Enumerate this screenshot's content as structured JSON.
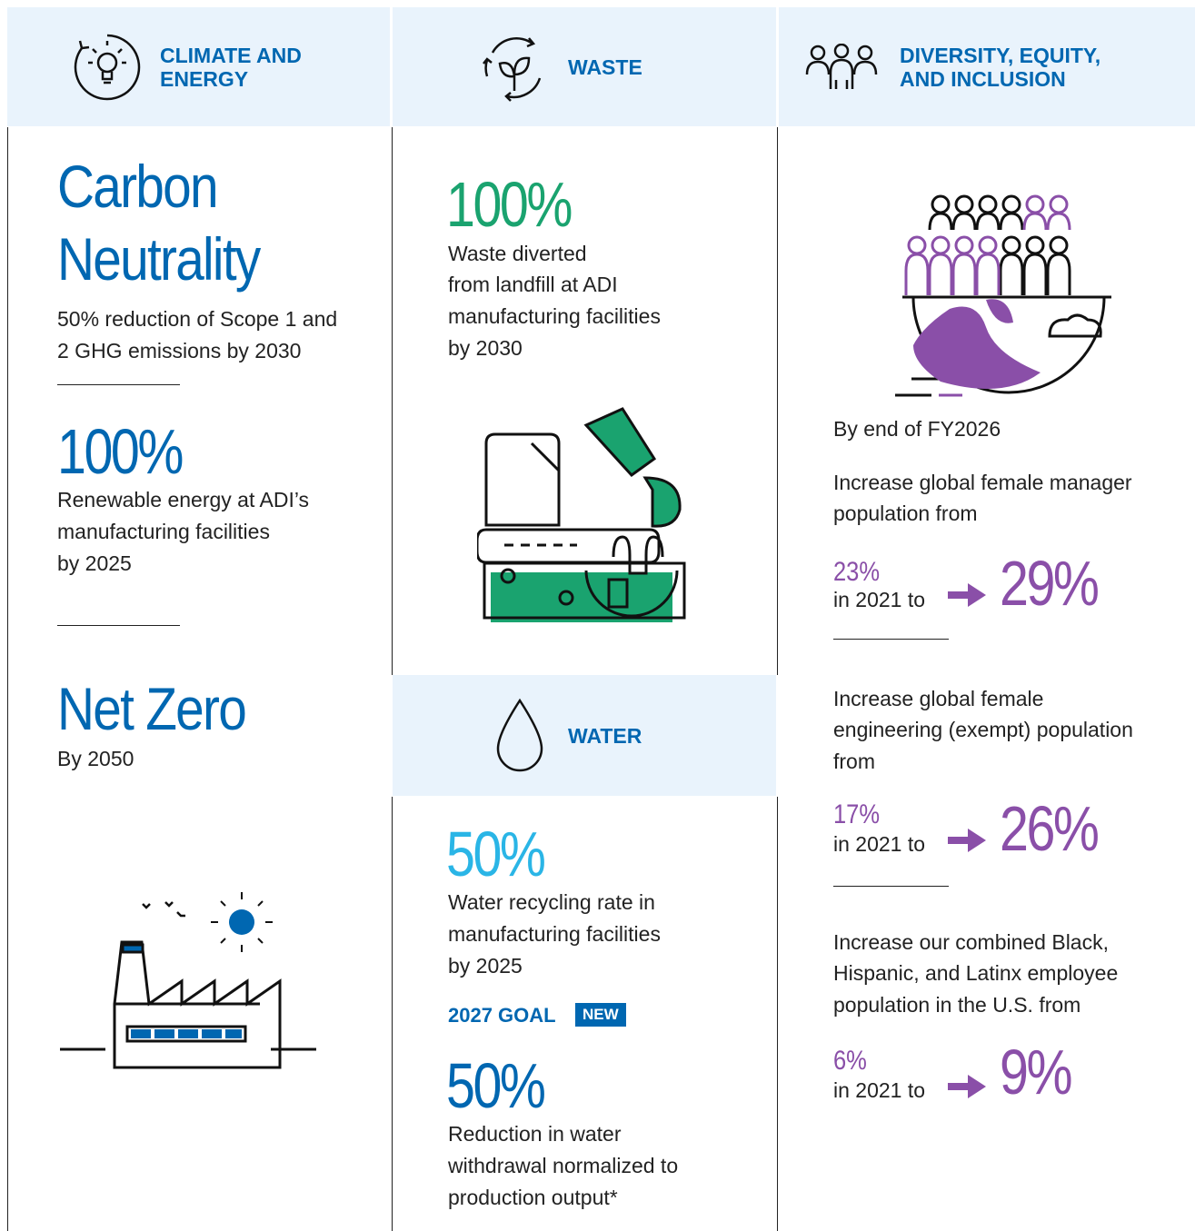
{
  "columns": [
    {
      "header": "CLIMATE AND ENERGY",
      "goals": [
        {
          "title_lines": [
            "Carbon",
            "Neutrality"
          ],
          "text_lines": [
            "50% reduction of Scope 1 and",
            "2 GHG emissions by 2030"
          ]
        },
        {
          "title_lines": [
            "100%"
          ],
          "text_lines": [
            "Renewable energy at ADI’s",
            "manufacturing facilities",
            "by 2025"
          ]
        },
        {
          "title_lines": [
            "Net Zero"
          ],
          "text_lines": [
            "By 2050"
          ]
        }
      ]
    },
    {
      "header": "WASTE",
      "goals": [
        {
          "title_lines": [
            "100%"
          ],
          "text_lines": [
            "Waste diverted",
            "from landfill at ADI",
            "manufacturing facilities",
            "by 2030"
          ]
        }
      ]
    },
    {
      "header": "DIVERSITY, EQUITY, AND INCLUSION",
      "intro": "By end of FY2026",
      "goals": [
        {
          "text_lines": [
            "Increase global female manager",
            "population from"
          ],
          "from": "23%",
          "from_note": "in 2021 to",
          "to": "29%"
        },
        {
          "text_lines": [
            "Increase global female",
            "engineering (exempt) population",
            "from"
          ],
          "from": "17%",
          "from_note": "in 2021 to",
          "to": "26%"
        },
        {
          "text_lines": [
            "Increase our combined Black,",
            "Hispanic, and Latinx employee",
            "population in the U.S. from"
          ],
          "from": "6%",
          "from_note": "in 2021 to",
          "to": "9%"
        }
      ]
    }
  ],
  "water": {
    "header": "WATER",
    "goals": [
      {
        "title_lines": [
          "50%"
        ],
        "text_lines": [
          "Water recycling rate in",
          "manufacturing facilities",
          "by 2025"
        ]
      },
      {
        "label": "2027 GOAL",
        "badge": "NEW",
        "title_lines": [
          "50%"
        ],
        "text_lines": [
          "Reduction in water",
          "withdrawal normalized to",
          "production output*"
        ]
      }
    ]
  }
}
